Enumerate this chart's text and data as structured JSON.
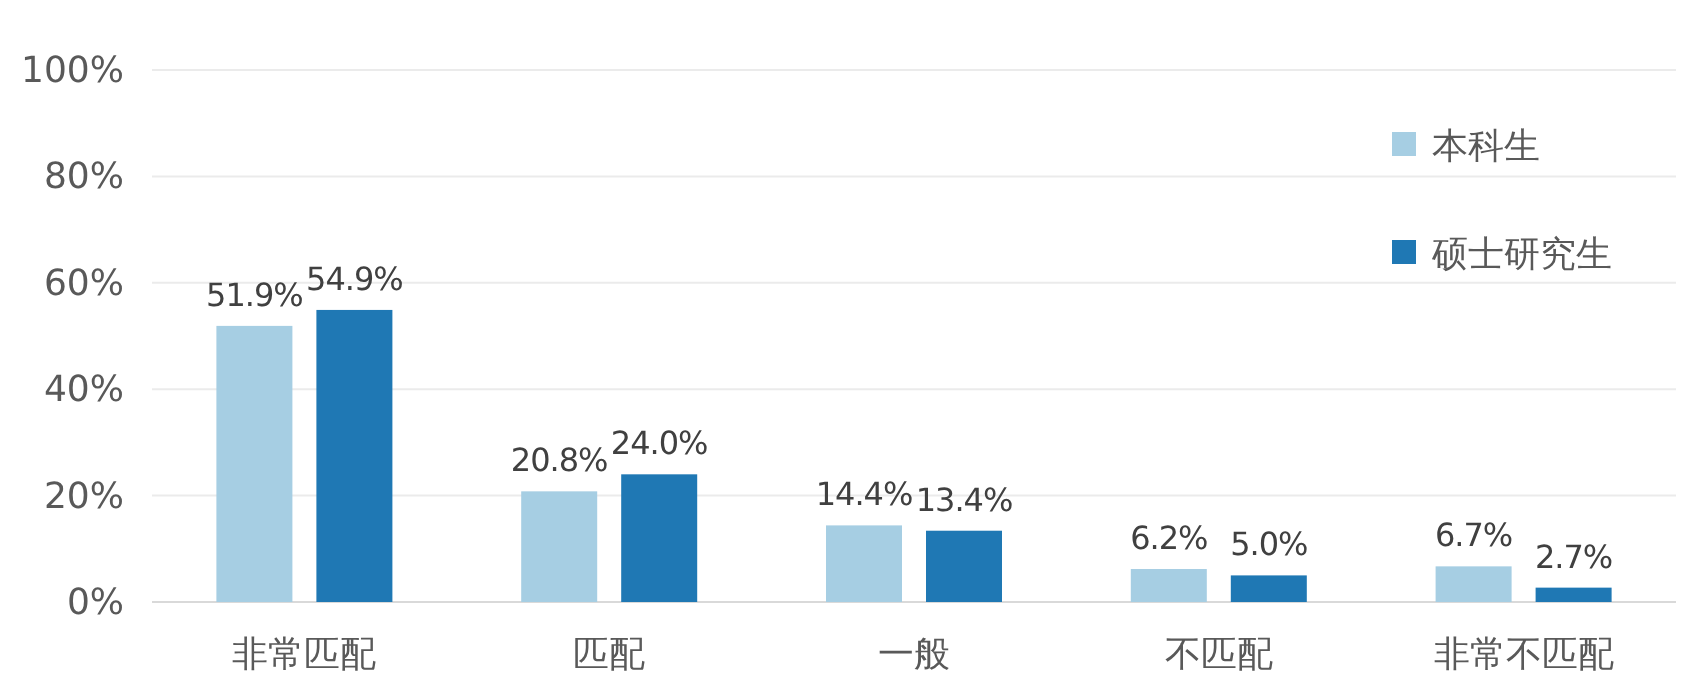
{
  "chart_data": {
    "type": "bar",
    "categories": [
      "非常匹配",
      "匹配",
      "一般",
      "不匹配",
      "非常不匹配"
    ],
    "series": [
      {
        "name": "本科生",
        "color": "#a6cee3",
        "values": [
          51.9,
          20.8,
          14.4,
          6.2,
          6.7
        ]
      },
      {
        "name": "硕士研究生",
        "color": "#1f78b4",
        "values": [
          54.9,
          24.0,
          13.4,
          5.0,
          2.7
        ]
      }
    ],
    "ylim": [
      0,
      100
    ],
    "yticks": [
      {
        "value": 0,
        "label": "0%"
      },
      {
        "value": 20,
        "label": "20%"
      },
      {
        "value": 40,
        "label": "40%"
      },
      {
        "value": 60,
        "label": "60%"
      },
      {
        "value": 80,
        "label": "80%"
      },
      {
        "value": 100,
        "label": "100%"
      }
    ],
    "grid": "y",
    "legend": "top right",
    "value_labels": [
      [
        "51.9%",
        "20.8%",
        "14.4%",
        "6.2%",
        "6.7%"
      ],
      [
        "54.9%",
        "24.0%",
        "13.4%",
        "5.0%",
        "2.7%"
      ]
    ]
  }
}
